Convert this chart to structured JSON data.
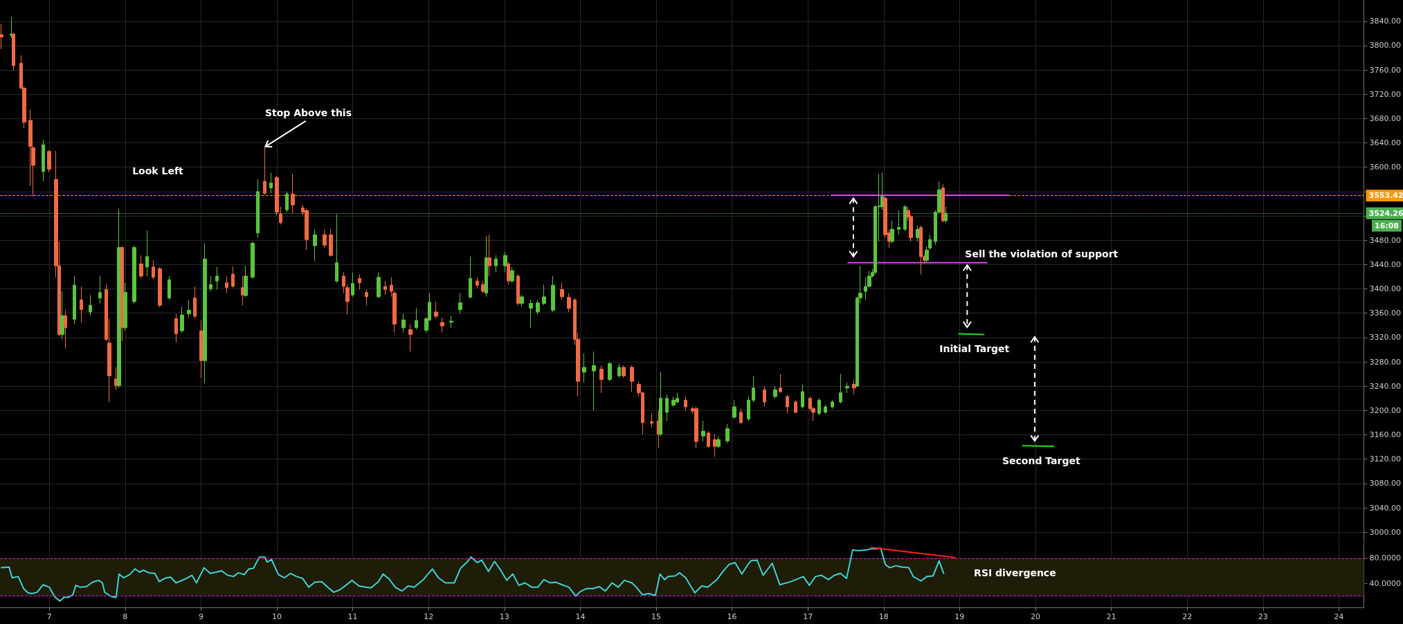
{
  "chart_data": [
    {
      "type": "candlestick",
      "xlim": [
        6.35,
        24.33
      ],
      "xticks": [
        7,
        8,
        9,
        10,
        11,
        12,
        13,
        14,
        15,
        16,
        17,
        18,
        19,
        20,
        21,
        22,
        23,
        24
      ],
      "ylim": [
        2982,
        3875
      ],
      "yticks": [
        {
          "value": 3000,
          "label": "3000.00"
        },
        {
          "value": 3040,
          "label": "3040.00"
        },
        {
          "value": 3080,
          "label": "3080.00"
        },
        {
          "value": 3120,
          "label": "3120.00"
        },
        {
          "value": 3160,
          "label": "3160.00"
        },
        {
          "value": 3200,
          "label": "3200.00"
        },
        {
          "value": 3240,
          "label": "3240.00"
        },
        {
          "value": 3280,
          "label": "3280.00"
        },
        {
          "value": 3320,
          "label": "3320.00"
        },
        {
          "value": 3360,
          "label": "3360.00"
        },
        {
          "value": 3400,
          "label": "3400.00"
        },
        {
          "value": 3440,
          "label": "3440.00"
        },
        {
          "value": 3480,
          "label": "3480.00"
        },
        {
          "value": 3520,
          "label": null
        },
        {
          "value": 3560,
          "label": null
        },
        {
          "value": 3600,
          "label": "3600.00"
        },
        {
          "value": 3640,
          "label": "3640.00"
        },
        {
          "value": 3680,
          "label": "3680.00"
        },
        {
          "value": 3720,
          "label": "3720.00"
        },
        {
          "value": 3760,
          "label": "3760.00"
        },
        {
          "value": 3800,
          "label": "3800.00"
        },
        {
          "value": 3840,
          "label": "3840.00"
        }
      ],
      "tick_labels": "y",
      "grid": true,
      "series": [
        {
          "x": [
            6.37,
            6.5,
            6.53,
            6.63,
            6.67,
            6.75,
            6.79,
            6.92,
            7.0,
            7.09,
            7.13,
            7.17,
            7.21,
            7.33,
            7.42,
            7.54,
            7.67,
            7.75,
            7.79,
            7.88,
            7.92,
            7.96,
            8.0,
            8.12,
            8.21,
            8.29,
            8.37,
            8.46,
            8.58,
            8.67,
            8.75,
            8.84,
            8.92,
            9.0,
            9.05,
            9.13,
            9.21,
            9.34,
            9.42,
            9.55,
            9.59,
            9.68,
            9.75,
            9.84,
            9.92,
            10.0,
            10.05,
            10.13,
            10.21,
            10.34,
            10.39,
            10.5,
            10.63,
            10.71,
            10.79,
            10.88,
            10.93,
            11.0,
            11.09,
            11.18,
            11.34,
            11.43,
            11.51,
            11.55,
            11.67,
            11.76,
            11.84,
            11.97,
            12.01,
            12.1,
            12.18,
            12.3,
            12.42,
            12.55,
            12.64,
            12.72,
            12.76,
            12.8,
            12.89,
            13.01,
            13.05,
            13.1,
            13.18,
            13.23,
            13.35,
            13.44,
            13.52,
            13.64,
            13.76,
            13.85,
            13.93,
            13.97,
            14.05,
            14.18,
            14.28,
            14.39,
            14.51,
            14.57,
            14.68,
            14.77,
            14.82,
            14.94,
            15.03,
            15.06,
            15.14,
            15.23,
            15.28,
            15.39,
            15.48,
            15.53,
            15.62,
            15.69,
            15.77,
            15.82,
            15.94,
            16.03,
            16.12,
            16.22,
            16.28,
            16.43,
            16.57,
            16.64,
            16.73,
            16.84,
            16.93,
            17.03,
            17.07,
            17.15,
            17.23,
            17.32,
            17.43,
            17.52,
            17.61,
            17.65,
            17.69,
            17.76,
            17.81,
            17.85,
            17.89,
            17.94,
            17.98,
            18.02,
            18.07,
            18.11,
            18.2,
            18.28,
            18.32,
            18.36,
            18.45,
            18.49,
            18.54,
            18.57,
            18.61,
            18.68,
            18.73,
            18.78,
            18.82
          ],
          "ohlc": [
            [
              3818,
              3836,
              3794,
              3814
            ],
            [
              3817,
              3847,
              3813,
              3819
            ],
            [
              3819,
              3821,
              3759,
              3767
            ],
            [
              3771,
              3784,
              3728,
              3730
            ],
            [
              3730,
              3733,
              3664,
              3674
            ],
            [
              3677,
              3695,
              3569,
              3634
            ],
            [
              3632,
              3634,
              3552,
              3603
            ],
            [
              3593,
              3645,
              3577,
              3637
            ],
            [
              3626,
              3628,
              3592,
              3597
            ],
            [
              3580,
              3627,
              3419,
              3438
            ],
            [
              3438,
              3478,
              3322,
              3325
            ],
            [
              3325,
              3396,
              3317,
              3356
            ],
            [
              3356,
              3365,
              3302,
              3336
            ],
            [
              3350,
              3421,
              3342,
              3406
            ],
            [
              3382,
              3404,
              3345,
              3366
            ],
            [
              3362,
              3390,
              3356,
              3373
            ],
            [
              3385,
              3421,
              3376,
              3394
            ],
            [
              3399,
              3407,
              3314,
              3317
            ],
            [
              3311,
              3351,
              3214,
              3257
            ],
            [
              3252,
              3271,
              3234,
              3241
            ],
            [
              3241,
              3532,
              3237,
              3468
            ],
            [
              3468,
              3470,
              3314,
              3336
            ],
            [
              3336,
              3410,
              3331,
              3394
            ],
            [
              3379,
              3471,
              3376,
              3468
            ],
            [
              3441,
              3455,
              3417,
              3421
            ],
            [
              3436,
              3496,
              3421,
              3453
            ],
            [
              3436,
              3447,
              3416,
              3419
            ],
            [
              3433,
              3436,
              3370,
              3373
            ],
            [
              3385,
              3421,
              3382,
              3415
            ],
            [
              3351,
              3359,
              3312,
              3326
            ],
            [
              3331,
              3370,
              3328,
              3357
            ],
            [
              3359,
              3382,
              3353,
              3365
            ],
            [
              3385,
              3404,
              3351,
              3355
            ],
            [
              3331,
              3348,
              3254,
              3282
            ],
            [
              3282,
              3475,
              3245,
              3449
            ],
            [
              3400,
              3421,
              3396,
              3407
            ],
            [
              3413,
              3436,
              3399,
              3421
            ],
            [
              3410,
              3421,
              3393,
              3402
            ],
            [
              3424,
              3437,
              3402,
              3404
            ],
            [
              3402,
              3421,
              3373,
              3390
            ],
            [
              3389,
              3438,
              3387,
              3421
            ],
            [
              3419,
              3478,
              3417,
              3475
            ],
            [
              3492,
              3580,
              3484,
              3560
            ],
            [
              3577,
              3634,
              3555,
              3557
            ],
            [
              3566,
              3591,
              3557,
              3574
            ],
            [
              3583,
              3586,
              3521,
              3526
            ],
            [
              3523,
              3535,
              3506,
              3509
            ],
            [
              3530,
              3560,
              3526,
              3556
            ],
            [
              3556,
              3589,
              3523,
              3538
            ],
            [
              3533,
              3538,
              3521,
              3526
            ],
            [
              3529,
              3532,
              3464,
              3481
            ],
            [
              3471,
              3498,
              3446,
              3489
            ],
            [
              3489,
              3498,
              3467,
              3472
            ],
            [
              3489,
              3498,
              3453,
              3455
            ],
            [
              3413,
              3523,
              3410,
              3443
            ],
            [
              3421,
              3427,
              3393,
              3404
            ],
            [
              3402,
              3407,
              3358,
              3379
            ],
            [
              3390,
              3427,
              3387,
              3409
            ],
            [
              3417,
              3424,
              3399,
              3410
            ],
            [
              3394,
              3399,
              3373,
              3387
            ],
            [
              3387,
              3427,
              3385,
              3419
            ],
            [
              3404,
              3413,
              3390,
              3399
            ],
            [
              3406,
              3419,
              3387,
              3396
            ],
            [
              3393,
              3396,
              3328,
              3342
            ],
            [
              3336,
              3359,
              3328,
              3349
            ],
            [
              3333,
              3342,
              3297,
              3325
            ],
            [
              3336,
              3368,
              3333,
              3348
            ],
            [
              3332,
              3353,
              3328,
              3351
            ],
            [
              3349,
              3393,
              3347,
              3378
            ],
            [
              3362,
              3379,
              3351,
              3355
            ],
            [
              3345,
              3353,
              3328,
              3339
            ],
            [
              3345,
              3356,
              3336,
              3347
            ],
            [
              3366,
              3393,
              3359,
              3377
            ],
            [
              3386,
              3453,
              3385,
              3417
            ],
            [
              3413,
              3419,
              3402,
              3406
            ],
            [
              3407,
              3413,
              3393,
              3396
            ],
            [
              3393,
              3487,
              3387,
              3451
            ],
            [
              3451,
              3489,
              3421,
              3438
            ],
            [
              3438,
              3455,
              3427,
              3449
            ],
            [
              3438,
              3461,
              3427,
              3455
            ],
            [
              3441,
              3444,
              3407,
              3413
            ],
            [
              3413,
              3436,
              3410,
              3430
            ],
            [
              3421,
              3424,
              3373,
              3376
            ],
            [
              3376,
              3390,
              3370,
              3387
            ],
            [
              3368,
              3382,
              3336,
              3376
            ],
            [
              3362,
              3382,
              3358,
              3377
            ],
            [
              3376,
              3407,
              3373,
              3387
            ],
            [
              3365,
              3421,
              3362,
              3406
            ],
            [
              3399,
              3410,
              3382,
              3387
            ],
            [
              3386,
              3393,
              3362,
              3368
            ],
            [
              3382,
              3385,
              3308,
              3317
            ],
            [
              3317,
              3328,
              3223,
              3248
            ],
            [
              3263,
              3294,
              3246,
              3271
            ],
            [
              3265,
              3297,
              3200,
              3274
            ],
            [
              3268,
              3274,
              3229,
              3251
            ],
            [
              3251,
              3280,
              3248,
              3277
            ],
            [
              3257,
              3277,
              3254,
              3271
            ],
            [
              3271,
              3274,
              3254,
              3257
            ],
            [
              3271,
              3274,
              3231,
              3248
            ],
            [
              3243,
              3248,
              3223,
              3229
            ],
            [
              3229,
              3231,
              3161,
              3180
            ],
            [
              3182,
              3195,
              3172,
              3179
            ],
            [
              3183,
              3200,
              3138,
              3161
            ],
            [
              3161,
              3263,
              3158,
              3220
            ],
            [
              3197,
              3226,
              3183,
              3220
            ],
            [
              3209,
              3223,
              3206,
              3217
            ],
            [
              3214,
              3229,
              3212,
              3220
            ],
            [
              3217,
              3223,
              3200,
              3206
            ],
            [
              3203,
              3206,
              3195,
              3199
            ],
            [
              3203,
              3206,
              3138,
              3149
            ],
            [
              3158,
              3183,
              3149,
              3166
            ],
            [
              3163,
              3166,
              3138,
              3141
            ],
            [
              3152,
              3161,
              3124,
              3141
            ],
            [
              3141,
              3158,
              3138,
              3152
            ],
            [
              3150,
              3178,
              3146,
              3170
            ],
            [
              3189,
              3217,
              3186,
              3206
            ],
            [
              3197,
              3203,
              3178,
              3180
            ],
            [
              3186,
              3223,
              3183,
              3217
            ],
            [
              3217,
              3257,
              3214,
              3237
            ],
            [
              3234,
              3240,
              3206,
              3214
            ],
            [
              3223,
              3240,
              3220,
              3234
            ],
            [
              3237,
              3260,
              3229,
              3231
            ],
            [
              3223,
              3226,
              3195,
              3206
            ],
            [
              3214,
              3217,
              3195,
              3197
            ],
            [
              3206,
              3243,
              3203,
              3231
            ],
            [
              3220,
              3223,
              3200,
              3203
            ],
            [
              3203,
              3206,
              3183,
              3197
            ],
            [
              3195,
              3220,
              3192,
              3217
            ],
            [
              3197,
              3209,
              3195,
              3206
            ],
            [
              3206,
              3217,
              3203,
              3214
            ],
            [
              3214,
              3260,
              3212,
              3229
            ],
            [
              3237,
              3246,
              3229,
              3240
            ],
            [
              3243,
              3251,
              3226,
              3237
            ],
            [
              3240,
              3387,
              3239,
              3385
            ],
            [
              3385,
              3438,
              3376,
              3393
            ],
            [
              3396,
              3419,
              3382,
              3404
            ],
            [
              3404,
              3430,
              3402,
              3421
            ],
            [
              3421,
              3433,
              3419,
              3427
            ],
            [
              3427,
              3538,
              3424,
              3535
            ],
            [
              3535,
              3589,
              3478,
              3536
            ],
            [
              3535,
              3591,
              3529,
              3552
            ],
            [
              3549,
              3552,
              3484,
              3489
            ],
            [
              3492,
              3498,
              3467,
              3478
            ],
            [
              3478,
              3512,
              3475,
              3498
            ],
            [
              3498,
              3529,
              3489,
              3501
            ],
            [
              3498,
              3538,
              3495,
              3535
            ],
            [
              3529,
              3535,
              3512,
              3518
            ],
            [
              3519,
              3521,
              3478,
              3484
            ],
            [
              3484,
              3504,
              3478,
              3498
            ],
            [
              3501,
              3504,
              3424,
              3453
            ],
            [
              3453,
              3455,
              3441,
              3447
            ],
            [
              3447,
              3470,
              3444,
              3464
            ],
            [
              3467,
              3489,
              3464,
              3481
            ],
            [
              3478,
              3529,
              3472,
              3526
            ],
            [
              3526,
              3577,
              3523,
              3563
            ],
            [
              3566,
              3572,
              3509,
              3512
            ],
            [
              3512,
              3535,
              3508,
              3524.26
            ]
          ]
        },
        {
          "type": "line",
          "color": "#e040fb",
          "x": [
            17.31,
            19.65
          ],
          "values": [
            3554,
            3554
          ]
        },
        {
          "type": "line",
          "color": "#e040fb",
          "x": [
            17.53,
            19.36
          ],
          "values": [
            3443,
            3443
          ]
        },
        {
          "type": "line",
          "color": "#22dd22",
          "x": [
            18.99,
            19.32
          ],
          "values": [
            3326,
            3325
          ]
        },
        {
          "type": "line",
          "color": "#22dd22",
          "x": [
            19.83,
            20.24
          ],
          "values": [
            3142,
            3141
          ]
        }
      ],
      "ref_lines": [
        {
          "axis": "y",
          "value": 3553.42,
          "label": "3553.42",
          "color": "#ff9800",
          "line_style": "dashed"
        },
        {
          "axis": "y",
          "value": 3524.26,
          "label": "3524.26",
          "color": "#4caf50",
          "line_style": "dotted"
        }
      ],
      "annotations": [
        "Look Left",
        {
          "text": "Stop Above this",
          "x": 9.84,
          "y": 3634
        },
        {
          "text": "Sell the violation of support",
          "x": 19.36,
          "y": 3443
        },
        {
          "text": "Initial Target",
          "x": 19.15,
          "y": 3326
        },
        {
          "text": "Second Target",
          "x": 20.03,
          "y": 3142
        },
        "16:08"
      ]
    },
    {
      "type": "line",
      "xlim": [
        6.35,
        24.33
      ],
      "xticks": [
        7,
        8,
        9,
        10,
        11,
        12,
        13,
        14,
        15,
        16,
        17,
        18,
        19,
        20,
        21,
        22,
        23,
        24
      ],
      "ylim": [
        2,
        103
      ],
      "yticks": [
        {
          "value": 40,
          "label": "40.0000"
        },
        {
          "value": 80,
          "label": "80.0000"
        }
      ],
      "grid": true,
      "series": [
        {
          "color": "#3fd4d4",
          "x": [
            6.37,
            6.47,
            6.51,
            6.59,
            6.66,
            6.72,
            6.77,
            6.84,
            6.92,
            7.0,
            7.07,
            7.14,
            7.19,
            7.25,
            7.31,
            7.35,
            7.41,
            7.49,
            7.57,
            7.65,
            7.7,
            7.73,
            7.82,
            7.88,
            7.92,
            7.98,
            8.06,
            8.13,
            8.19,
            8.24,
            8.31,
            8.39,
            8.45,
            8.52,
            8.6,
            8.67,
            8.79,
            8.88,
            8.94,
            9.04,
            9.12,
            9.2,
            9.27,
            9.35,
            9.43,
            9.49,
            9.57,
            9.63,
            9.69,
            9.77,
            9.84,
            9.87,
            9.93,
            10.02,
            10.1,
            10.18,
            10.26,
            10.34,
            10.42,
            10.5,
            10.59,
            10.67,
            10.75,
            10.83,
            10.91,
            10.99,
            11.08,
            11.17,
            11.24,
            11.34,
            11.4,
            11.48,
            11.56,
            11.65,
            11.73,
            11.81,
            11.93,
            12.05,
            12.13,
            12.22,
            12.34,
            12.42,
            12.5,
            12.56,
            12.64,
            12.7,
            12.79,
            12.87,
            12.95,
            13.03,
            13.11,
            13.19,
            13.27,
            13.36,
            13.44,
            13.52,
            13.6,
            13.68,
            13.76,
            13.85,
            13.94,
            14.01,
            14.09,
            14.17,
            14.25,
            14.33,
            14.42,
            14.5,
            14.58,
            14.68,
            14.74,
            14.82,
            14.9,
            14.99,
            15.05,
            15.11,
            15.16,
            15.25,
            15.31,
            15.39,
            15.51,
            15.6,
            15.68,
            15.8,
            15.88,
            15.96,
            16.04,
            16.13,
            16.21,
            16.25,
            16.33,
            16.41,
            16.53,
            16.63,
            16.78,
            16.94,
            17.02,
            17.1,
            17.18,
            17.27,
            17.35,
            17.43,
            17.51,
            17.59,
            17.67,
            17.76,
            17.84,
            17.92,
            17.96,
            18.02,
            18.08,
            18.16,
            18.24,
            18.33,
            18.39,
            18.49,
            18.57,
            18.65,
            18.73,
            18.79
          ],
          "values": [
            65,
            66,
            49,
            51,
            32,
            25,
            24,
            26,
            38,
            34,
            19,
            12,
            18,
            18,
            22,
            37,
            34,
            35,
            42,
            45,
            41,
            26,
            19,
            18,
            55,
            49,
            54,
            63,
            58,
            61,
            57,
            56,
            43,
            48,
            50,
            41,
            47,
            53,
            41,
            65,
            56,
            58,
            60,
            53,
            51,
            57,
            54,
            63,
            64,
            82,
            82,
            74,
            78,
            54,
            49,
            56,
            51,
            48,
            34,
            42,
            43,
            34,
            26,
            30,
            37,
            45,
            36,
            34,
            33,
            43,
            55,
            47,
            34,
            28,
            36,
            34,
            46,
            63,
            49,
            41,
            41,
            64,
            73,
            82,
            73,
            77,
            59,
            75,
            61,
            45,
            55,
            37,
            41,
            34,
            34,
            46,
            41,
            42,
            38,
            34,
            20,
            28,
            32,
            32,
            35,
            28,
            41,
            34,
            45,
            41,
            34,
            22,
            24,
            21,
            55,
            46,
            51,
            52,
            57,
            49,
            25,
            36,
            34,
            46,
            59,
            70,
            73,
            55,
            70,
            76,
            77,
            53,
            72,
            38,
            43,
            51,
            37,
            51,
            53,
            46,
            53,
            56,
            48,
            93,
            92,
            93,
            95,
            95,
            96,
            70,
            65,
            68,
            66,
            65,
            51,
            44,
            51,
            52,
            76,
            56
          ]
        },
        {
          "color": "#ff2020",
          "x": [
            17.84,
            18.94
          ],
          "values": [
            97,
            81
          ]
        }
      ],
      "bands": [
        {
          "axis": "y",
          "from": 20,
          "to": 80,
          "color": "#1f1c07"
        }
      ],
      "ref_lines": [
        {
          "axis": "y",
          "value": 80,
          "color": "#d020d0",
          "line_style": "dashed"
        },
        {
          "axis": "y",
          "value": 20,
          "color": "#d020d0",
          "line_style": "dashed"
        }
      ],
      "annotations": [
        "RSI divergence"
      ]
    }
  ]
}
